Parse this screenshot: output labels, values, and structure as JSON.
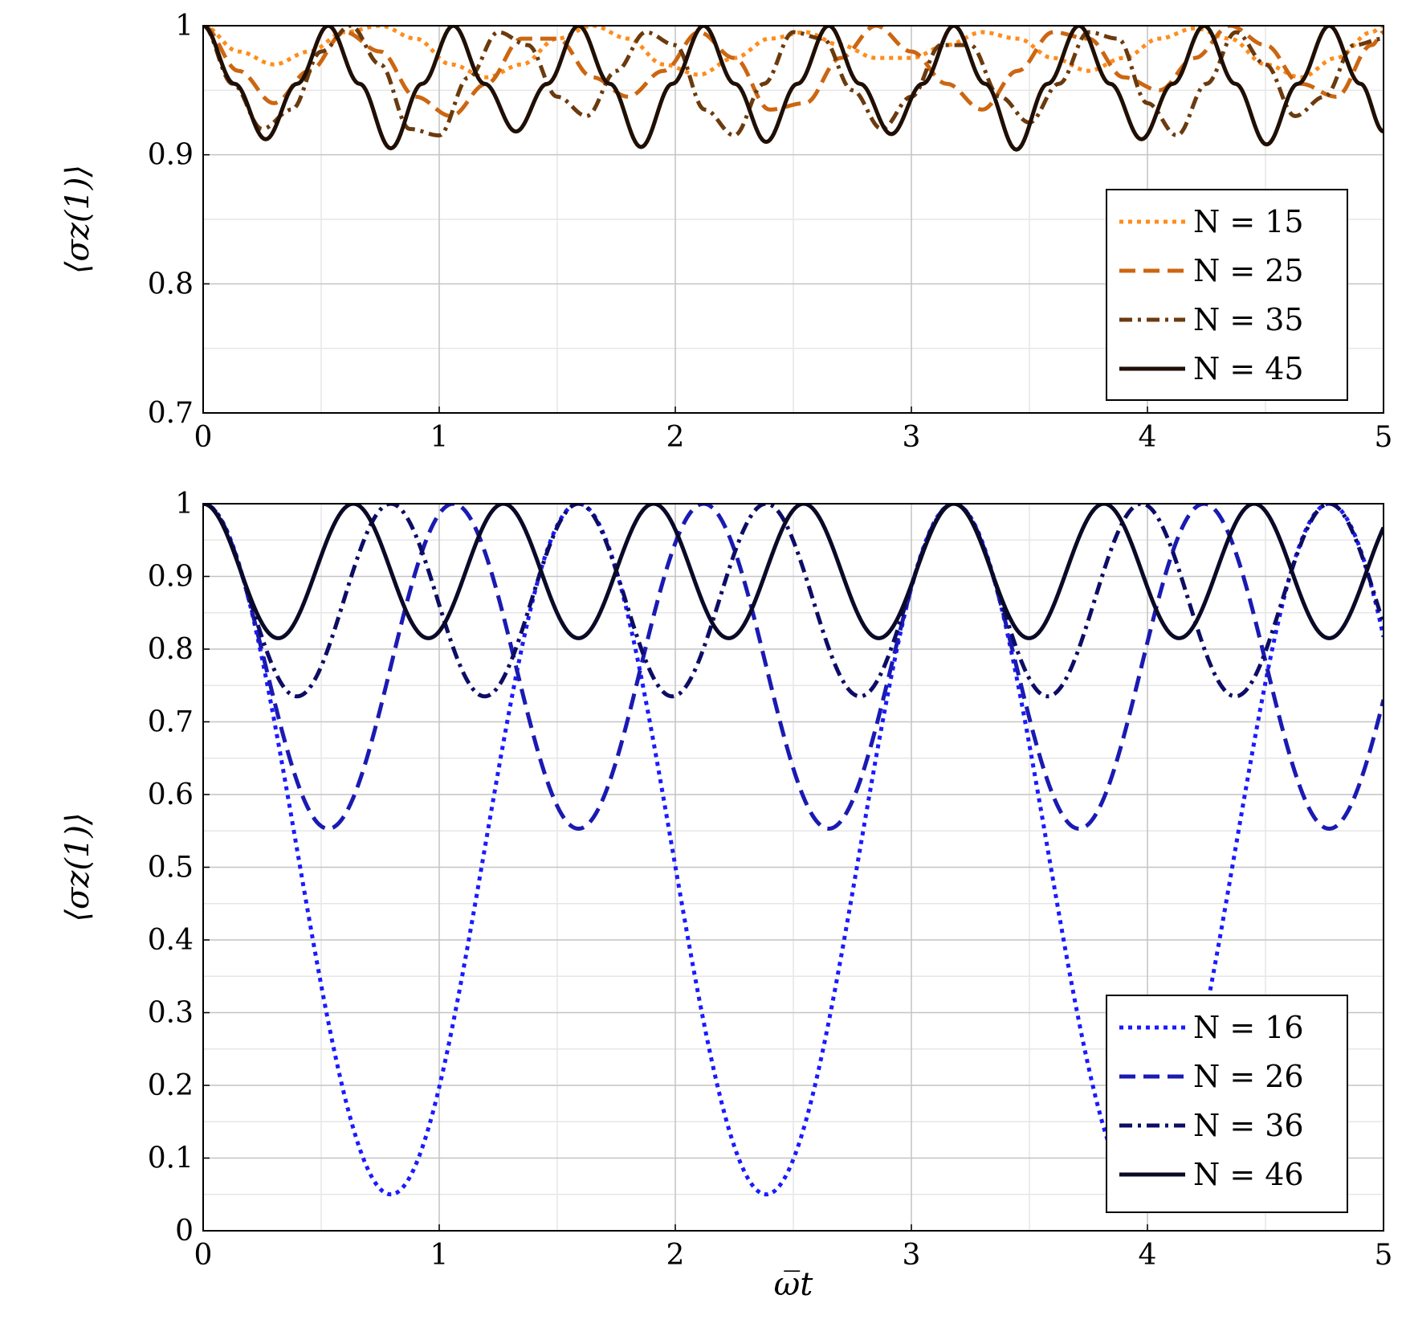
{
  "chart_data": [
    {
      "type": "line",
      "ylabel": "⟨σz(1)⟩",
      "xlabel": "",
      "xlim": [
        0,
        5
      ],
      "ylim": [
        0.7,
        1
      ],
      "x_ticks": [
        "0",
        "1",
        "2",
        "3",
        "4",
        "5"
      ],
      "y_ticks": [
        "0.7",
        "0.8",
        "0.9",
        "1"
      ],
      "grid": true,
      "legend_position": "lower-right",
      "series": [
        {
          "name": "N = 15",
          "color": "#ff8c1a",
          "style": "dotted",
          "x": [
            0,
            0.15,
            0.3,
            0.45,
            0.6,
            0.75,
            0.9,
            1.05,
            1.2,
            1.35,
            1.5,
            1.65,
            1.8,
            1.95,
            2.1,
            2.25,
            2.4,
            2.55,
            2.7,
            2.85,
            3.0,
            3.15,
            3.3,
            3.45,
            3.6,
            3.75,
            3.9,
            4.05,
            4.2,
            4.35,
            4.5,
            4.65,
            4.8,
            4.95,
            5.0
          ],
          "y": [
            1.0,
            0.98,
            0.97,
            0.98,
            0.995,
            1.0,
            0.99,
            0.97,
            0.96,
            0.97,
            0.99,
            1.0,
            0.99,
            0.97,
            0.962,
            0.975,
            0.99,
            0.995,
            0.985,
            0.975,
            0.975,
            0.985,
            0.995,
            0.99,
            0.975,
            0.965,
            0.975,
            0.99,
            0.998,
            0.99,
            0.97,
            0.96,
            0.975,
            0.995,
            1.0
          ]
        },
        {
          "name": "N = 25",
          "color": "#cc6611",
          "style": "dashed",
          "x": [
            0,
            0.15,
            0.3,
            0.45,
            0.6,
            0.75,
            0.9,
            1.05,
            1.2,
            1.35,
            1.5,
            1.65,
            1.8,
            1.95,
            2.1,
            2.25,
            2.4,
            2.55,
            2.7,
            2.85,
            3.0,
            3.15,
            3.3,
            3.45,
            3.6,
            3.75,
            3.9,
            4.05,
            4.2,
            4.35,
            4.5,
            4.65,
            4.8,
            4.95,
            5.0
          ],
          "y": [
            1.0,
            0.965,
            0.94,
            0.965,
            0.995,
            0.98,
            0.945,
            0.93,
            0.955,
            0.99,
            0.99,
            0.96,
            0.945,
            0.965,
            0.995,
            0.975,
            0.935,
            0.94,
            0.975,
            1.0,
            0.98,
            0.955,
            0.935,
            0.965,
            0.995,
            0.99,
            0.96,
            0.95,
            0.975,
            1.0,
            0.985,
            0.955,
            0.945,
            0.985,
            0.995
          ]
        },
        {
          "name": "N = 35",
          "color": "#6b3a0d",
          "style": "dashdot",
          "x": [
            0,
            0.125,
            0.25,
            0.375,
            0.5,
            0.625,
            0.75,
            0.875,
            1.0,
            1.125,
            1.25,
            1.375,
            1.5,
            1.625,
            1.75,
            1.875,
            2.0,
            2.125,
            2.25,
            2.375,
            2.5,
            2.625,
            2.75,
            2.875,
            3.0,
            3.125,
            3.25,
            3.375,
            3.5,
            3.625,
            3.75,
            3.875,
            4.0,
            4.125,
            4.25,
            4.375,
            4.5,
            4.625,
            4.75,
            4.875,
            5.0
          ],
          "y": [
            1.0,
            0.955,
            0.92,
            0.935,
            0.98,
            1.0,
            0.97,
            0.92,
            0.915,
            0.96,
            0.995,
            0.985,
            0.945,
            0.93,
            0.965,
            0.995,
            0.985,
            0.935,
            0.915,
            0.955,
            0.995,
            0.99,
            0.95,
            0.92,
            0.945,
            0.985,
            0.985,
            0.945,
            0.925,
            0.955,
            0.995,
            0.99,
            0.94,
            0.915,
            0.955,
            0.995,
            0.97,
            0.93,
            0.945,
            0.985,
            0.99
          ]
        },
        {
          "name": "N = 45",
          "color": "#1f0f05",
          "style": "solid",
          "x": [
            0,
            0.1325,
            0.265,
            0.3975,
            0.53,
            0.6625,
            0.795,
            0.9275,
            1.06,
            1.1925,
            1.325,
            1.4575,
            1.59,
            1.7225,
            1.855,
            1.9875,
            2.12,
            2.2525,
            2.385,
            2.5175,
            2.65,
            2.7825,
            2.915,
            3.0475,
            3.18,
            3.3125,
            3.445,
            3.5775,
            3.71,
            3.8425,
            3.975,
            4.1075,
            4.24,
            4.3725,
            4.505,
            4.6375,
            4.77,
            4.9025,
            5.0
          ],
          "y": [
            1.0,
            0.955,
            0.912,
            0.955,
            1.0,
            0.955,
            0.905,
            0.955,
            1.0,
            0.955,
            0.918,
            0.955,
            1.0,
            0.955,
            0.906,
            0.955,
            1.0,
            0.955,
            0.91,
            0.955,
            1.0,
            0.955,
            0.916,
            0.955,
            1.0,
            0.955,
            0.904,
            0.955,
            1.0,
            0.955,
            0.912,
            0.955,
            1.0,
            0.955,
            0.908,
            0.955,
            1.0,
            0.955,
            0.918
          ]
        }
      ]
    },
    {
      "type": "line",
      "ylabel": "⟨σz(1)⟩",
      "xlabel": "ω̅t",
      "xlim": [
        0,
        5
      ],
      "ylim": [
        0,
        1
      ],
      "x_ticks": [
        "0",
        "1",
        "2",
        "3",
        "4",
        "5"
      ],
      "y_ticks": [
        "0",
        "0.1",
        "0.2",
        "0.3",
        "0.4",
        "0.5",
        "0.6",
        "0.7",
        "0.8",
        "0.9",
        "1"
      ],
      "grid": true,
      "legend_position": "lower-right",
      "series": [
        {
          "name": "N = 16",
          "color": "#1a1aff",
          "style": "dotted",
          "model": {
            "min": 0.05,
            "period": 1.59,
            "phase": 0
          },
          "x": [
            0,
            0.4,
            0.8,
            1.2,
            1.59,
            2.0,
            2.39,
            2.78,
            3.18,
            3.58,
            3.97,
            4.37,
            4.77,
            5.0
          ],
          "y": [
            1.0,
            0.52,
            0.05,
            0.52,
            1.0,
            0.52,
            0.05,
            0.52,
            1.0,
            0.52,
            0.05,
            0.52,
            1.0,
            0.8
          ]
        },
        {
          "name": "N = 26",
          "color": "#1a1ab3",
          "style": "dashed",
          "model": {
            "min": 0.553,
            "period": 1.06,
            "phase": 0
          },
          "x": [
            0,
            0.265,
            0.53,
            0.795,
            1.06,
            1.325,
            1.59,
            1.855,
            2.12,
            2.385,
            2.65,
            2.915,
            3.18,
            3.445,
            3.71,
            3.975,
            4.24,
            4.505,
            4.77,
            5.0
          ],
          "y": [
            1.0,
            0.777,
            0.553,
            0.777,
            1.0,
            0.777,
            0.553,
            0.777,
            1.0,
            0.777,
            0.553,
            0.777,
            1.0,
            0.777,
            0.553,
            0.777,
            1.0,
            0.777,
            0.553,
            0.72
          ]
        },
        {
          "name": "N = 36",
          "color": "#0d0d66",
          "style": "dashdot",
          "model": {
            "min": 0.735,
            "period": 0.795,
            "phase": 0
          },
          "x": [
            0,
            0.3975,
            0.795,
            1.1925,
            1.59,
            1.9875,
            2.385,
            2.7825,
            3.18,
            3.5775,
            3.975,
            4.3725,
            4.77,
            5.0
          ],
          "y": [
            1.0,
            0.735,
            1.0,
            0.735,
            1.0,
            0.735,
            1.0,
            0.735,
            1.0,
            0.735,
            1.0,
            0.735,
            1.0,
            0.79
          ]
        },
        {
          "name": "N = 46",
          "color": "#0a0a28",
          "style": "solid",
          "model": {
            "min": 0.815,
            "period": 0.636,
            "phase": 0
          },
          "x": [
            0,
            0.318,
            0.636,
            0.954,
            1.272,
            1.59,
            1.908,
            2.226,
            2.544,
            2.862,
            3.18,
            3.498,
            3.816,
            4.134,
            4.452,
            4.77,
            5.0
          ],
          "y": [
            1.0,
            0.815,
            1.0,
            0.815,
            1.0,
            0.815,
            1.0,
            0.815,
            1.0,
            0.815,
            1.0,
            0.815,
            1.0,
            0.815,
            1.0,
            0.815,
            0.99
          ]
        }
      ]
    }
  ]
}
